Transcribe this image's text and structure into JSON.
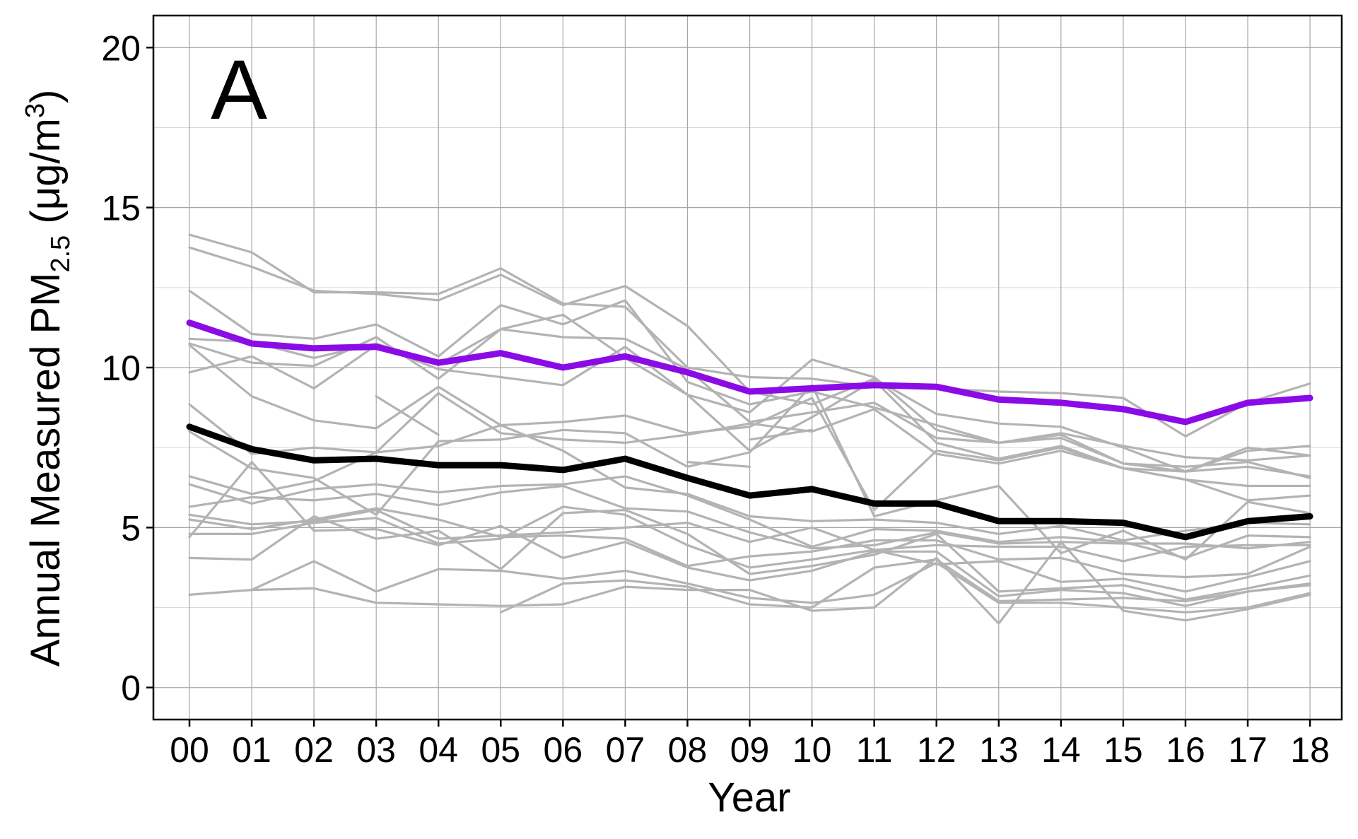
{
  "chart_data": {
    "type": "line",
    "panel_label": "A",
    "xlabel": "Year",
    "ylabel": {
      "main": "Annual Measured PM",
      "subscript": "2.5",
      "unit_open": " (μg/m",
      "unit_superscript": "3",
      "unit_close": ")"
    },
    "x": [
      "00",
      "01",
      "02",
      "03",
      "04",
      "05",
      "06",
      "07",
      "08",
      "09",
      "10",
      "11",
      "12",
      "13",
      "14",
      "15",
      "16",
      "17",
      "18"
    ],
    "ylim": [
      -1,
      21
    ],
    "yticks": [
      0,
      5,
      10,
      15,
      20
    ],
    "grid": true,
    "series": [
      {
        "color": "#8b0be6",
        "width": "thick",
        "values": [
          11.4,
          10.75,
          10.6,
          10.65,
          10.15,
          10.45,
          10.0,
          10.35,
          9.85,
          9.25,
          9.35,
          9.45,
          9.4,
          9.0,
          8.9,
          8.7,
          8.3,
          8.9,
          9.05
        ]
      },
      {
        "color": "#000000",
        "width": "thick",
        "values": [
          8.15,
          7.45,
          7.1,
          7.15,
          6.95,
          6.95,
          6.8,
          7.15,
          6.55,
          6.0,
          6.2,
          5.75,
          5.75,
          5.2,
          5.2,
          5.15,
          4.7,
          5.2,
          5.35
        ]
      },
      {
        "color": "#b3b3b3",
        "width": "thin",
        "values": [
          14.15,
          13.6,
          12.35,
          12.35,
          12.3,
          13.1,
          12.0,
          11.9,
          10.0,
          9.7,
          9.65,
          9.4,
          9.35,
          9.25,
          9.2,
          9.05,
          7.85,
          8.9,
          9.5
        ]
      },
      {
        "color": "#b3b3b3",
        "width": "thin",
        "values": [
          13.75,
          13.15,
          12.4,
          12.3,
          12.1,
          12.9,
          11.95,
          12.55,
          11.3,
          9.25,
          8.85,
          9.65,
          8.55,
          8.25,
          8.15,
          7.5,
          6.75,
          7.4,
          7.55
        ]
      },
      {
        "color": "#b3b3b3",
        "width": "thin",
        "values": [
          12.4,
          11.05,
          10.9,
          11.35,
          10.35,
          11.95,
          11.35,
          12.1,
          9.55,
          8.85,
          9.25,
          8.75,
          8.2,
          7.65,
          7.95,
          7.55,
          7.2,
          7.1,
          7.25
        ]
      },
      {
        "color": "#b3b3b3",
        "width": "thin",
        "values": [
          10.9,
          10.8,
          10.3,
          10.75,
          10.1,
          11.2,
          11.65,
          10.3,
          9.15,
          8.6,
          10.25,
          9.7,
          8.05,
          7.65,
          7.8,
          7.0,
          6.75,
          7.5,
          7.25
        ]
      },
      {
        "color": "#b3b3b3",
        "width": "thin",
        "values": [
          10.75,
          10.15,
          10.05,
          10.95,
          9.65,
          11.2,
          10.95,
          10.9,
          9.95,
          8.3,
          8.6,
          8.9,
          7.8,
          7.65,
          7.9,
          7.0,
          6.9,
          7.05,
          6.55
        ]
      },
      {
        "color": "#b3b3b3",
        "width": "thin",
        "values": [
          9.85,
          10.35,
          9.35,
          10.7,
          9.95,
          9.7,
          9.45,
          10.65,
          9.15,
          7.4,
          8.45,
          9.6,
          7.65,
          7.15,
          7.55,
          6.85,
          6.75,
          6.9,
          6.6
        ]
      },
      {
        "color": "#b3b3b3",
        "width": "thin",
        "values": [
          10.7,
          9.1,
          8.35,
          8.1,
          9.4,
          8.2,
          8.3,
          8.5,
          7.95,
          8.15,
          9.05,
          5.55,
          7.4,
          7.1,
          7.5,
          6.85,
          6.5,
          6.3,
          6.3
        ]
      },
      {
        "color": "#b3b3b3",
        "width": "thin",
        "values": [
          8.85,
          7.3,
          7.5,
          7.35,
          9.2,
          7.95,
          7.75,
          7.65,
          7.9,
          8.25,
          8.0,
          8.7,
          7.3,
          7.0,
          7.4,
          6.85,
          6.5,
          5.85,
          6.0
        ]
      },
      {
        "color": "#b3b3b3",
        "width": "thin",
        "values": [
          8.0,
          6.85,
          6.55,
          5.4,
          7.7,
          7.75,
          8.05,
          7.95,
          6.9,
          7.35,
          9.45,
          5.35,
          5.85,
          6.3,
          4.2,
          4.9,
          4.0,
          5.8,
          5.45
        ]
      },
      {
        "color": "#b3b3b3",
        "width": "thin",
        "values": [
          6.6,
          6.05,
          6.45,
          7.35,
          7.55,
          8.2,
          7.4,
          6.25,
          6.05,
          5.35,
          5.2,
          5.25,
          5.15,
          4.8,
          5.05,
          4.6,
          4.9,
          5.15,
          5.1
        ]
      },
      {
        "color": "#b3b3b3",
        "width": "thin",
        "values": [
          6.35,
          5.75,
          6.2,
          6.35,
          6.1,
          6.3,
          6.35,
          6.6,
          6.0,
          5.25,
          4.4,
          4.95,
          4.9,
          4.55,
          4.7,
          4.55,
          4.05,
          4.75,
          4.7
        ]
      },
      {
        "color": "#b3b3b3",
        "width": "thin",
        "values": [
          5.65,
          5.95,
          5.85,
          6.05,
          5.7,
          6.1,
          6.3,
          5.6,
          5.5,
          4.85,
          4.35,
          4.45,
          4.85,
          4.5,
          4.55,
          4.5,
          4.5,
          4.35,
          4.55
        ]
      },
      {
        "color": "#b3b3b3",
        "width": "thin",
        "values": [
          5.4,
          5.1,
          5.2,
          5.55,
          4.65,
          4.75,
          4.85,
          5.0,
          5.15,
          4.55,
          5.0,
          4.3,
          4.45,
          4.4,
          4.4,
          3.95,
          4.4,
          4.45,
          4.45
        ]
      },
      {
        "color": "#b3b3b3",
        "width": "thin",
        "values": [
          5.25,
          4.95,
          5.25,
          5.6,
          5.25,
          4.7,
          4.75,
          4.65,
          3.8,
          4.1,
          4.25,
          4.6,
          4.6,
          4.0,
          4.05,
          3.55,
          3.45,
          3.55,
          4.4
        ]
      },
      {
        "color": "#b3b3b3",
        "width": "thin",
        "values": [
          4.8,
          4.8,
          5.15,
          5.3,
          4.5,
          4.65,
          5.65,
          5.4,
          4.45,
          3.75,
          4.0,
          4.3,
          3.85,
          3.95,
          3.3,
          3.4,
          3.0,
          3.45,
          3.95
        ]
      },
      {
        "color": "#b3b3b3",
        "width": "thin",
        "values": [
          4.05,
          4.0,
          5.35,
          4.65,
          4.9,
          3.7,
          5.45,
          5.55,
          4.8,
          3.55,
          3.8,
          4.15,
          4.8,
          3.0,
          3.1,
          3.2,
          2.75,
          3.1,
          3.5
        ]
      },
      {
        "color": "#b3b3b3",
        "width": "thin",
        "values": [
          4.7,
          7.05,
          4.9,
          4.95,
          4.45,
          5.05,
          4.05,
          4.55,
          3.75,
          3.35,
          3.65,
          4.25,
          4.25,
          2.85,
          3.05,
          2.95,
          2.55,
          3.0,
          3.25
        ]
      },
      {
        "color": "#b3b3b3",
        "width": "thin",
        "values": [
          2.9,
          3.05,
          3.95,
          3.0,
          3.7,
          3.65,
          3.4,
          3.65,
          3.25,
          2.8,
          2.65,
          2.9,
          3.9,
          2.65,
          2.65,
          2.5,
          2.35,
          2.5,
          2.95
        ]
      },
      {
        "color": "#b3b3b3",
        "width": "thin",
        "values": [
          null,
          3.05,
          3.1,
          2.65,
          2.6,
          2.55,
          2.6,
          3.15,
          3.05,
          3.05,
          2.4,
          2.5,
          4.05,
          2.0,
          4.55,
          2.4,
          2.1,
          2.45,
          2.9
        ]
      },
      {
        "color": "#b3b3b3",
        "width": "thin",
        "values": [
          null,
          null,
          null,
          null,
          null,
          2.35,
          3.25,
          3.35,
          3.15,
          2.6,
          2.5,
          3.75,
          4.0,
          2.7,
          2.75,
          2.8,
          2.7,
          3.0,
          3.2
        ]
      },
      {
        "color": "#b3b3b3",
        "width": "thin",
        "values": [
          null,
          null,
          null,
          9.1,
          7.9,
          null,
          null,
          null,
          null,
          null,
          null,
          null,
          null,
          null,
          null,
          null,
          null,
          null,
          null
        ]
      },
      {
        "color": "#b3b3b3",
        "width": "thin",
        "values": [
          null,
          null,
          null,
          null,
          null,
          null,
          null,
          null,
          7.05,
          6.9,
          null,
          null,
          null,
          null,
          null,
          null,
          null,
          null,
          null
        ]
      },
      {
        "color": "#b3b3b3",
        "width": "thin",
        "values": [
          null,
          null,
          null,
          null,
          null,
          null,
          null,
          null,
          null,
          7.75,
          8.05,
          null,
          null,
          null,
          null,
          null,
          null,
          null,
          null
        ]
      }
    ]
  }
}
